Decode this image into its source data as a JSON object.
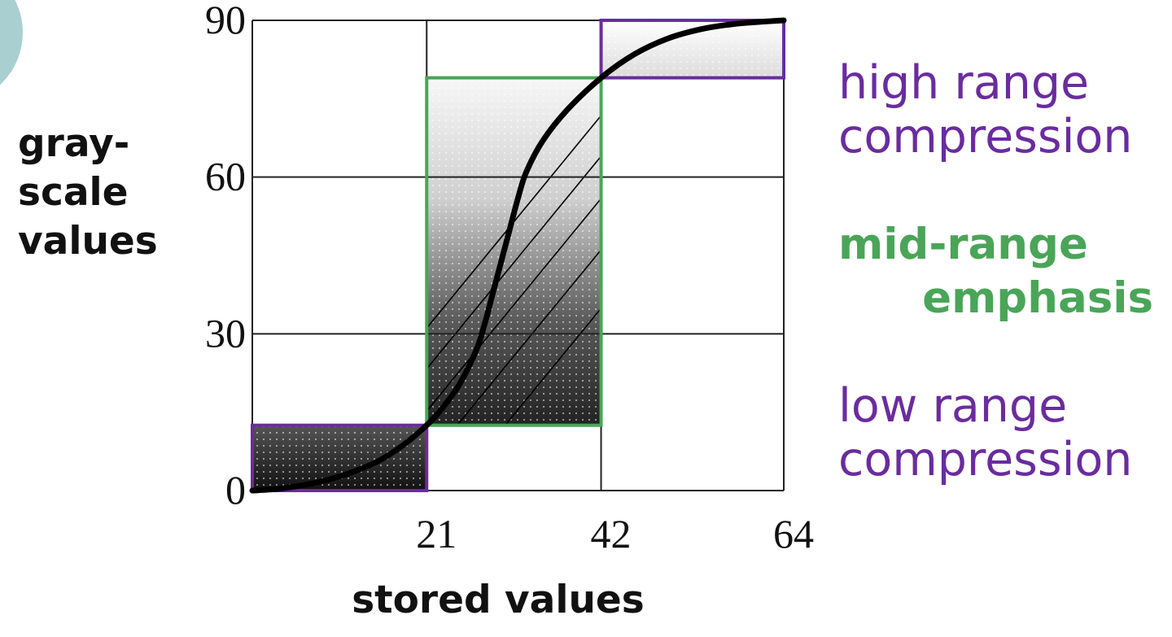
{
  "chart_data": {
    "type": "line",
    "xlabel": "stored values",
    "ylabel": [
      "gray-",
      "scale",
      "values"
    ],
    "x_ticks": [
      {
        "value": 21,
        "label": "21"
      },
      {
        "value": 42,
        "label": "42"
      },
      {
        "value": 64,
        "label": "64"
      }
    ],
    "y_ticks": [
      {
        "value": 0,
        "label": "0"
      },
      {
        "value": 30,
        "label": "30"
      },
      {
        "value": 60,
        "label": "60"
      },
      {
        "value": 90,
        "label": "90"
      }
    ],
    "xlim": [
      0,
      64
    ],
    "ylim": [
      0,
      90
    ],
    "grid": true,
    "series": [
      {
        "x": [
          0,
          3,
          6,
          9,
          12,
          15,
          18,
          21,
          23,
          25,
          27,
          28,
          29,
          30,
          31,
          32,
          33,
          35,
          38,
          42,
          46,
          50,
          54,
          58,
          62,
          64
        ],
        "y": [
          0,
          0.3,
          1,
          2,
          3.5,
          5.5,
          8.5,
          12.5,
          16,
          20.5,
          27,
          32,
          38,
          44,
          50,
          56,
          61,
          67,
          73,
          79,
          83.5,
          86.5,
          88.3,
          89.3,
          89.8,
          90
        ]
      }
    ],
    "regions": [
      {
        "name": "low range compression",
        "x": [
          0,
          21
        ],
        "y": [
          0,
          12.5
        ],
        "color": "#6a2c9e"
      },
      {
        "name": "mid-range emphasis",
        "x": [
          21,
          42
        ],
        "y": [
          12.5,
          79
        ],
        "color": "#4aa558"
      },
      {
        "name": "high range compression",
        "x": [
          42,
          64
        ],
        "y": [
          79,
          90
        ],
        "color": "#6a2c9e"
      }
    ],
    "annotations": [
      {
        "lines": [
          "high range",
          "compression"
        ],
        "color": "#6a2c9e",
        "weight": "normal"
      },
      {
        "lines": [
          "mid-range",
          "emphasis"
        ],
        "color": "#4aa558",
        "weight": "bold"
      },
      {
        "lines": [
          "low range",
          "compression"
        ],
        "color": "#6a2c9e",
        "weight": "normal"
      }
    ]
  }
}
